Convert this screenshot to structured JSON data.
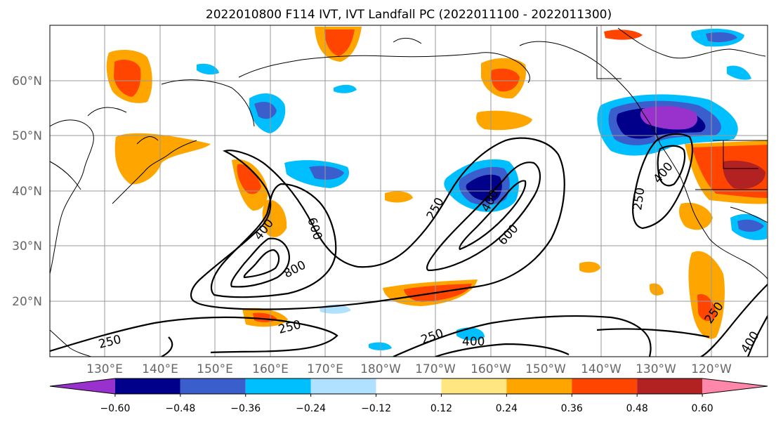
{
  "title": "2022010800 F114 IVT, IVT Landfall PC (2022011100 - 2022011300)",
  "lat_labels": [
    "60°N",
    "50°N",
    "40°N",
    "30°N",
    "20°N"
  ],
  "lon_labels": [
    "130°E",
    "140°E",
    "150°E",
    "160°E",
    "170°E",
    "180°W",
    "170°W",
    "160°W",
    "150°W",
    "140°W",
    "130°W",
    "120°W"
  ],
  "colorbar": {
    "colors": [
      "#9932cc",
      "#00008b",
      "#3a5fcd",
      "#00bfff",
      "#b0e2ff",
      "#ffffff",
      "#ffe680",
      "#ffa500",
      "#ff4500",
      "#b22222",
      "#ff88aa"
    ],
    "ticks": [
      "−0.60",
      "−0.48",
      "−0.36",
      "−0.24",
      "−0.12",
      "0.12",
      "0.24",
      "0.36",
      "0.48",
      "0.60"
    ]
  },
  "contour_labels": [
    "400",
    "600",
    "800",
    "250",
    "250",
    "400",
    "600",
    "250",
    "400",
    "250",
    "400",
    "250",
    "400",
    "250"
  ]
}
